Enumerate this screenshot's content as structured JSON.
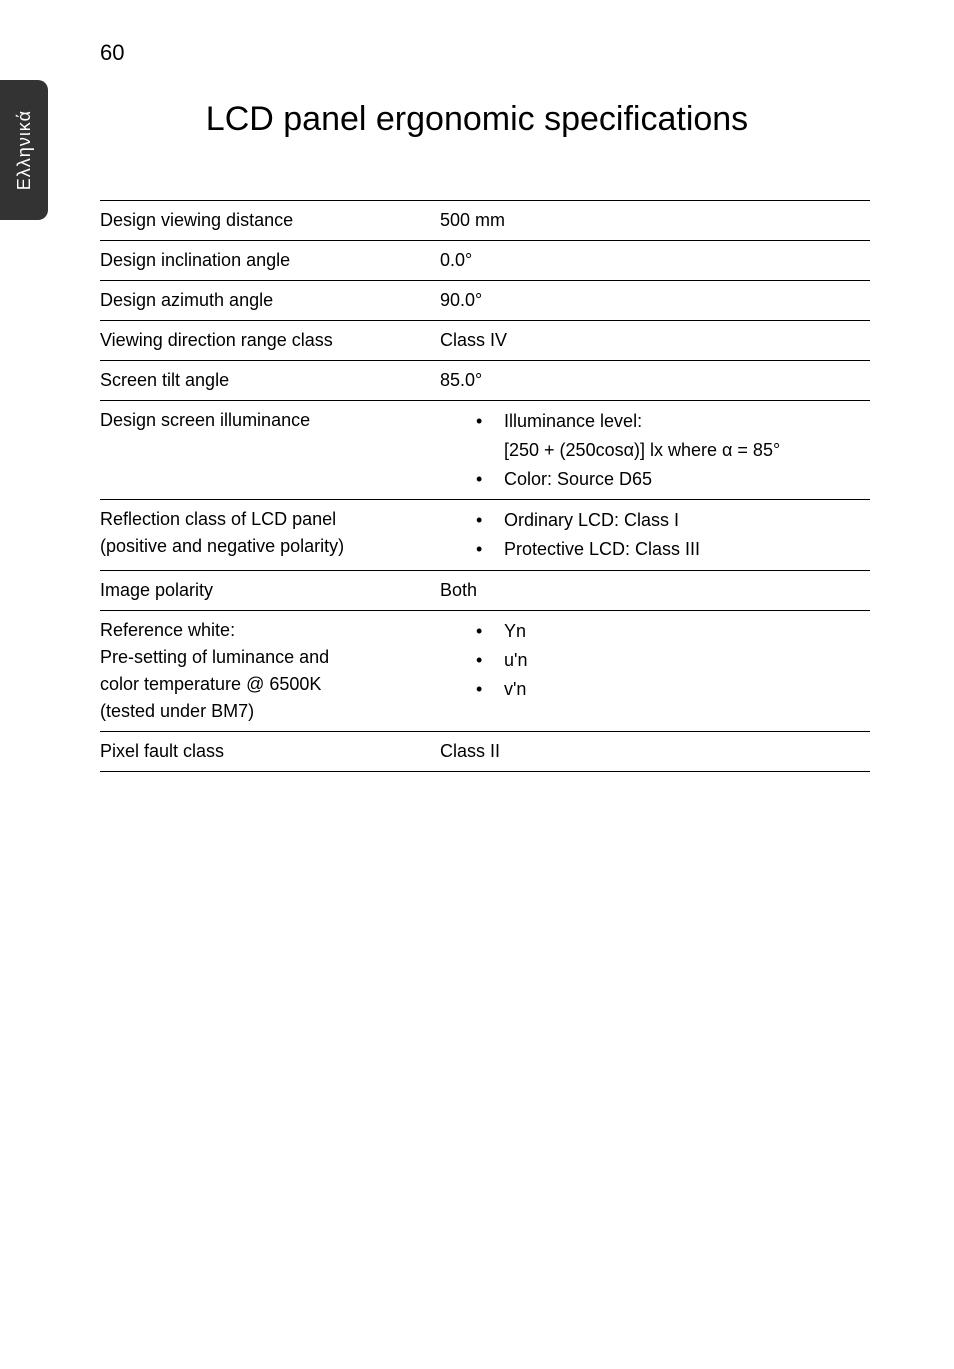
{
  "page_number": "60",
  "side_tab": "Eλληνικά",
  "title": "LCD panel ergonomic specifications",
  "rows": {
    "r0": {
      "label": "Design viewing distance",
      "value": "500 mm"
    },
    "r1": {
      "label": "Design inclination angle",
      "value": "0.0°"
    },
    "r2": {
      "label": "Design azimuth angle",
      "value": "90.0°"
    },
    "r3": {
      "label": "Viewing direction range class",
      "value": "Class IV"
    },
    "r4": {
      "label": "Screen tilt angle",
      "value": "85.0°"
    },
    "r5": {
      "label": "Design screen illuminance",
      "b1": "Illuminance level:",
      "b1_sub": "[250 + (250cosα)] lx where α = 85°",
      "b2": "Color: Source D65"
    },
    "r6": {
      "label_l1": "Reflection class of LCD panel",
      "label_l2": "(positive and negative polarity)",
      "b1": "Ordinary LCD: Class I",
      "b2": "Protective LCD: Class III"
    },
    "r7": {
      "label": "Image polarity",
      "value": "Both"
    },
    "r8": {
      "label_l1": "Reference white:",
      "label_l2": "Pre-setting of luminance and",
      "label_l3": "color temperature @ 6500K",
      "label_l4": "(tested under BM7)",
      "b1": "Yn",
      "b2": "u'n",
      "b3": "v'n"
    },
    "r9": {
      "label": "Pixel fault class",
      "value": "Class II"
    }
  }
}
